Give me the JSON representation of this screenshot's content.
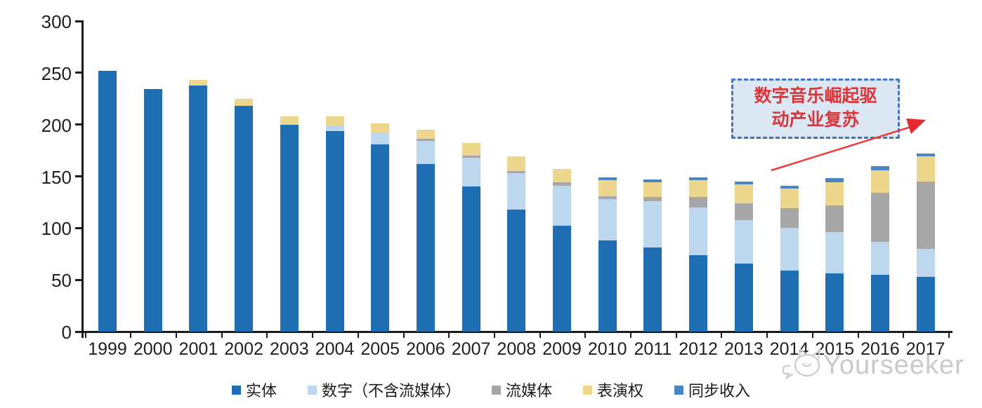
{
  "chart_data": {
    "type": "bar",
    "stacked": true,
    "title": "",
    "xlabel": "",
    "ylabel": "",
    "ylim": [
      0,
      300
    ],
    "yticks": [
      0,
      50,
      100,
      150,
      200,
      250,
      300
    ],
    "grid": false,
    "legend_position": "bottom",
    "categories": [
      "1999",
      "2000",
      "2001",
      "2002",
      "2003",
      "2004",
      "2005",
      "2006",
      "2007",
      "2008",
      "2009",
      "2010",
      "2011",
      "2012",
      "2013",
      "2014",
      "2015",
      "2016",
      "2017"
    ],
    "series": [
      {
        "id": "physical",
        "name": "实体",
        "color": "#1F6DB2",
        "values": [
          252,
          234,
          238,
          218,
          200,
          194,
          181,
          162,
          140,
          118,
          102,
          88,
          81,
          74,
          66,
          59,
          56,
          55,
          53
        ]
      },
      {
        "id": "digital-ex-streaming",
        "name": "数字（不含流媒体）",
        "color": "#BDD7EE",
        "values": [
          0,
          0,
          0,
          0,
          0,
          5,
          11,
          22,
          28,
          35,
          39,
          40,
          45,
          46,
          42,
          41,
          40,
          32,
          27
        ]
      },
      {
        "id": "streaming",
        "name": "流媒体",
        "color": "#A6A6A6",
        "values": [
          0,
          0,
          0,
          0,
          0,
          0,
          0,
          2,
          2,
          2,
          3,
          3,
          4,
          10,
          16,
          19,
          26,
          47,
          65
        ]
      },
      {
        "id": "performance-rights",
        "name": "表演权",
        "color": "#EDD78C",
        "values": [
          0,
          0,
          5,
          7,
          8,
          9,
          9,
          9,
          12,
          14,
          13,
          15,
          14,
          16,
          18,
          19,
          22,
          22,
          24
        ]
      },
      {
        "id": "sync-revenue",
        "name": "同步收入",
        "color": "#4A86C5",
        "values": [
          0,
          0,
          0,
          0,
          0,
          0,
          0,
          0,
          0,
          0,
          0,
          3,
          3,
          3,
          3,
          3,
          4,
          4,
          3
        ]
      }
    ]
  },
  "annotation": {
    "line1": "数字音乐崛起驱",
    "line2": "动产业复苏",
    "text_color": "#D9363C",
    "border_color": "#4472C4",
    "fill_color": "#DCE7F4",
    "arrow_color": "#F03B3B"
  },
  "watermark": {
    "text": "Yourseeker"
  }
}
